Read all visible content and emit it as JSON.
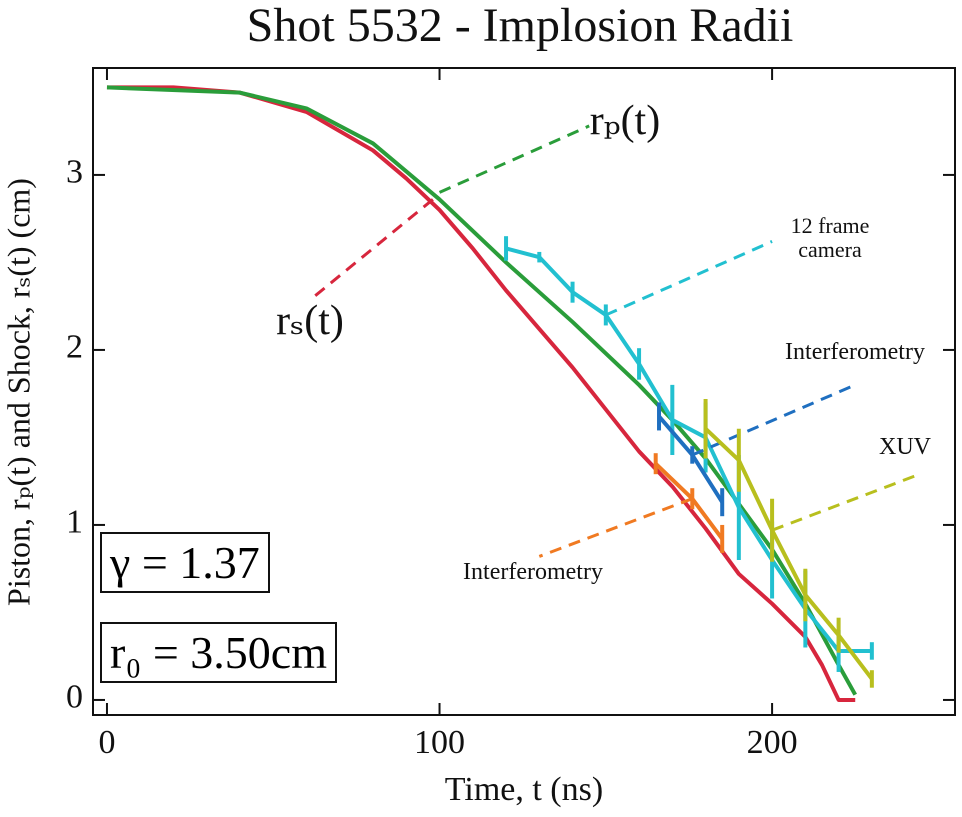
{
  "chart_data": {
    "type": "line",
    "title": "Shot 5532 - Implosion Radii",
    "x_label": "Time, t (ns)",
    "y_label": "Piston, rₚ(t) and Shock, rₛ(t) (cm)",
    "annotations": [
      "γ = 1.37",
      "r₀ = 3.50cm"
    ],
    "xlim": [
      -4.2,
      255
    ],
    "ylim": [
      -0.086,
      3.611
    ],
    "xticks": [
      0,
      100,
      200
    ],
    "yticks": [
      0,
      1,
      2,
      3
    ],
    "series": [
      {
        "name": "rₛ(t)",
        "color": "#d7263d",
        "x": [
          0,
          20,
          40,
          60,
          80,
          90,
          100,
          110,
          120,
          130,
          140,
          150,
          160,
          170,
          180,
          190,
          200,
          210,
          215,
          220,
          225
        ],
        "values": [
          3.5,
          3.5,
          3.47,
          3.36,
          3.14,
          2.98,
          2.8,
          2.58,
          2.34,
          2.12,
          1.9,
          1.66,
          1.42,
          1.22,
          0.98,
          0.72,
          0.55,
          0.36,
          0.2,
          0.0,
          0.0
        ]
      },
      {
        "name": "rₚ(t)",
        "color": "#2a9d3a",
        "x": [
          0,
          40,
          60,
          80,
          100,
          120,
          140,
          160,
          170,
          180,
          190,
          200,
          210,
          220,
          225
        ],
        "values": [
          3.5,
          3.47,
          3.38,
          3.18,
          2.86,
          2.5,
          2.16,
          1.8,
          1.6,
          1.38,
          1.12,
          0.86,
          0.55,
          0.2,
          0.03
        ]
      },
      {
        "name": "12 frame camera",
        "color": "#22c0d0",
        "x": [
          120,
          130,
          140,
          150,
          160,
          170,
          180,
          190,
          200,
          210,
          220,
          230
        ],
        "values": [
          2.58,
          2.53,
          2.33,
          2.2,
          1.92,
          1.6,
          1.5,
          1.1,
          0.8,
          0.52,
          0.28,
          0.28
        ],
        "errors": [
          0.07,
          0.03,
          0.06,
          0.06,
          0.09,
          0.2,
          0.2,
          0.3,
          0.22,
          0.22,
          0.12,
          0.05
        ]
      },
      {
        "name": "Interferometry",
        "color": "#1f6fc0",
        "x": [
          166,
          176,
          185
        ],
        "values": [
          1.62,
          1.4,
          1.13
        ],
        "errors": [
          0.08,
          0.05,
          0.08
        ]
      },
      {
        "name": "Interferometry",
        "color": "#f07a22",
        "x": [
          165,
          176,
          185
        ],
        "values": [
          1.35,
          1.15,
          0.92
        ],
        "errors": [
          0.06,
          0.06,
          0.08
        ]
      },
      {
        "name": "XUV",
        "color": "#b8bf1e",
        "x": [
          180,
          190,
          200,
          210,
          220,
          230
        ],
        "values": [
          1.55,
          1.37,
          0.97,
          0.6,
          0.37,
          0.12
        ],
        "errors": [
          0.17,
          0.18,
          0.18,
          0.15,
          0.1,
          0.05
        ]
      }
    ]
  }
}
